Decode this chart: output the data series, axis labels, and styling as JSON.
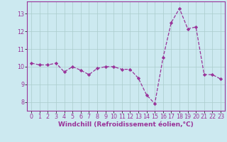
{
  "x": [
    0,
    1,
    2,
    3,
    4,
    5,
    6,
    7,
    8,
    9,
    10,
    11,
    12,
    13,
    14,
    15,
    16,
    17,
    18,
    19,
    20,
    21,
    22,
    23
  ],
  "y": [
    10.2,
    10.1,
    10.1,
    10.2,
    9.7,
    10.0,
    9.8,
    9.55,
    9.9,
    10.0,
    10.0,
    9.85,
    9.85,
    9.35,
    8.4,
    7.9,
    10.5,
    12.5,
    13.3,
    12.15,
    12.25,
    9.55,
    9.55,
    9.3
  ],
  "line_color": "#993399",
  "marker": "D",
  "marker_size": 2.2,
  "bg_color": "#cce9f0",
  "grid_color": "#aacccc",
  "xlabel": "Windchill (Refroidissement éolien,°C)",
  "ylim": [
    7.5,
    13.7
  ],
  "xlim": [
    -0.5,
    23.5
  ],
  "yticks": [
    8,
    9,
    10,
    11,
    12,
    13
  ],
  "xticks": [
    0,
    1,
    2,
    3,
    4,
    5,
    6,
    7,
    8,
    9,
    10,
    11,
    12,
    13,
    14,
    15,
    16,
    17,
    18,
    19,
    20,
    21,
    22,
    23
  ],
  "tick_color": "#993399",
  "label_fontsize": 6.5,
  "tick_fontsize": 5.8,
  "line_style": "--",
  "line_width": 0.9
}
